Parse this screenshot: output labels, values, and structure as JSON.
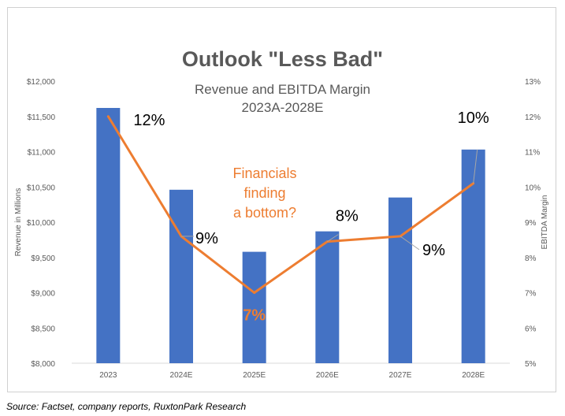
{
  "chart_data": {
    "type": "bar",
    "title": "Outlook \"Less Bad\"",
    "subtitle": "Revenue and EBITDA Margin",
    "subtitle2": "2023A-2028E",
    "categories": [
      "2023",
      "2024E",
      "2025E",
      "2026E",
      "2027E",
      "2028E"
    ],
    "series": [
      {
        "name": "Revenue",
        "type": "bar",
        "axis": "left",
        "color": "#4472C4",
        "values": [
          11620,
          10460,
          9580,
          9870,
          10350,
          11030
        ]
      },
      {
        "name": "EBITDA Margin",
        "type": "line",
        "axis": "right",
        "color": "#ED7D31",
        "values": [
          12.0,
          8.6,
          7.0,
          8.45,
          8.6,
          10.1
        ]
      }
    ],
    "data_labels": [
      "12%",
      "9%",
      "7%",
      "8%",
      "9%",
      "10%"
    ],
    "ylabel": "Revenue in Millions",
    "y2label": "EBITDA Margin",
    "ylim": [
      8000,
      12000
    ],
    "y2lim": [
      5,
      13
    ],
    "yticks": [
      "$8,000",
      "$8,500",
      "$9,000",
      "$9,500",
      "$10,000",
      "$10,500",
      "$11,000",
      "$11,500",
      "$12,000"
    ],
    "y2ticks": [
      "5%",
      "6%",
      "7%",
      "8%",
      "9%",
      "10%",
      "11%",
      "12%",
      "13%"
    ],
    "annotation": [
      "Financials",
      "finding",
      "a bottom?"
    ],
    "grid": false
  },
  "source": "Source: Factset, company reports, RuxtonPark Research"
}
